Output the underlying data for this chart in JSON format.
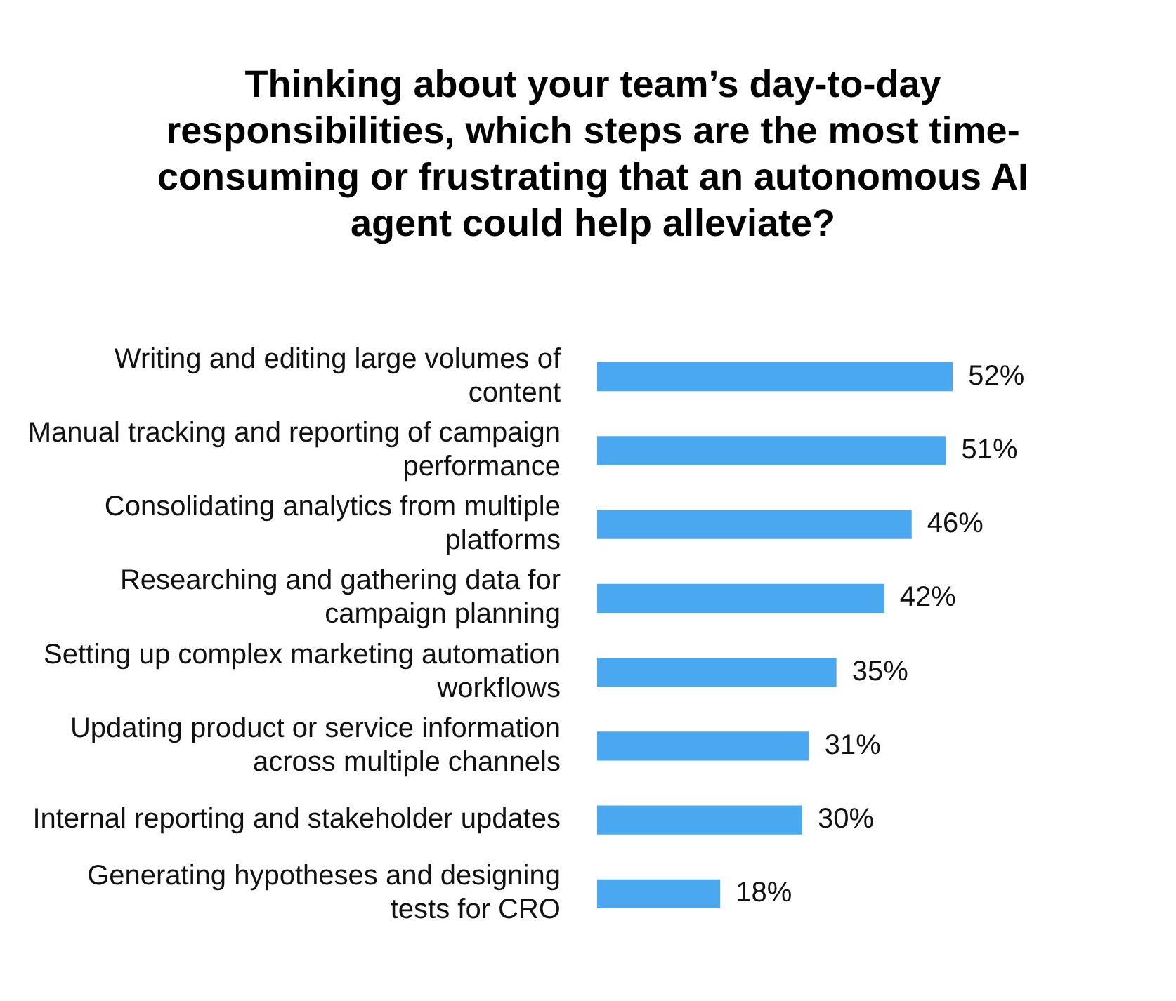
{
  "chart_data": {
    "type": "bar",
    "orientation": "horizontal",
    "title": "Thinking about your team’s day-to-day responsibilities, which steps are the most time-consuming or frustrating that an autonomous AI agent could help alleviate?",
    "categories": [
      "Writing and editing large volumes of content",
      "Manual tracking and reporting of campaign performance",
      "Consolidating analytics from multiple platforms",
      "Researching and gathering data for campaign planning",
      "Setting up complex marketing automation workflows",
      "Updating product or service information across multiple channels",
      "Internal reporting and stakeholder updates",
      "Generating hypotheses and designing tests for CRO"
    ],
    "values": [
      52,
      51,
      46,
      42,
      35,
      31,
      30,
      18
    ],
    "value_labels": [
      "52%",
      "51%",
      "46%",
      "42%",
      "35%",
      "31%",
      "30%",
      "18%"
    ],
    "color": "#4aa8f0",
    "grid": false,
    "legend": false
  }
}
